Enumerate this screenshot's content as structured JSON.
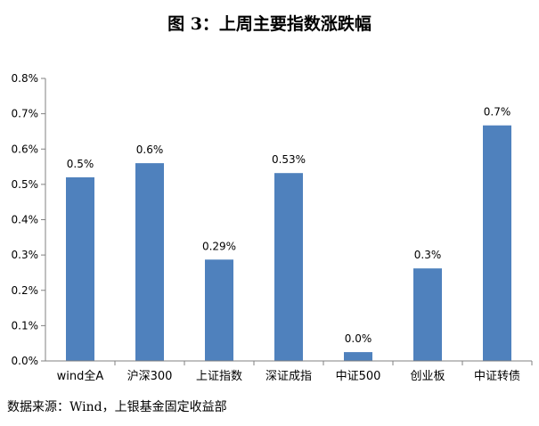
{
  "title": "图 3：上周主要指数涨跌幅",
  "source": "数据来源：Wind，上银基金固定收益部",
  "colors": {
    "bar": "#4f81bd",
    "axis": "#808080",
    "text": "#000000"
  },
  "chart_data": {
    "type": "bar",
    "title": "图 3：上周主要指数涨跌幅",
    "xlabel": "",
    "ylabel": "",
    "categories": [
      "wind全A",
      "沪深300",
      "上证指数",
      "深证成指",
      "中证500",
      "创业板",
      "中证转债"
    ],
    "values": [
      0.0052,
      0.0056,
      0.00287,
      0.00532,
      0.00025,
      0.00262,
      0.00667
    ],
    "data_labels": [
      "0.5%",
      "0.6%",
      "0.29%",
      "0.53%",
      "0.0%",
      "0.3%",
      "0.7%"
    ],
    "ylim": [
      0,
      0.008
    ],
    "yticks": [
      "0.0%",
      "0.1%",
      "0.2%",
      "0.3%",
      "0.4%",
      "0.5%",
      "0.6%",
      "0.7%",
      "0.8%"
    ],
    "grid": false,
    "legend": "none"
  }
}
